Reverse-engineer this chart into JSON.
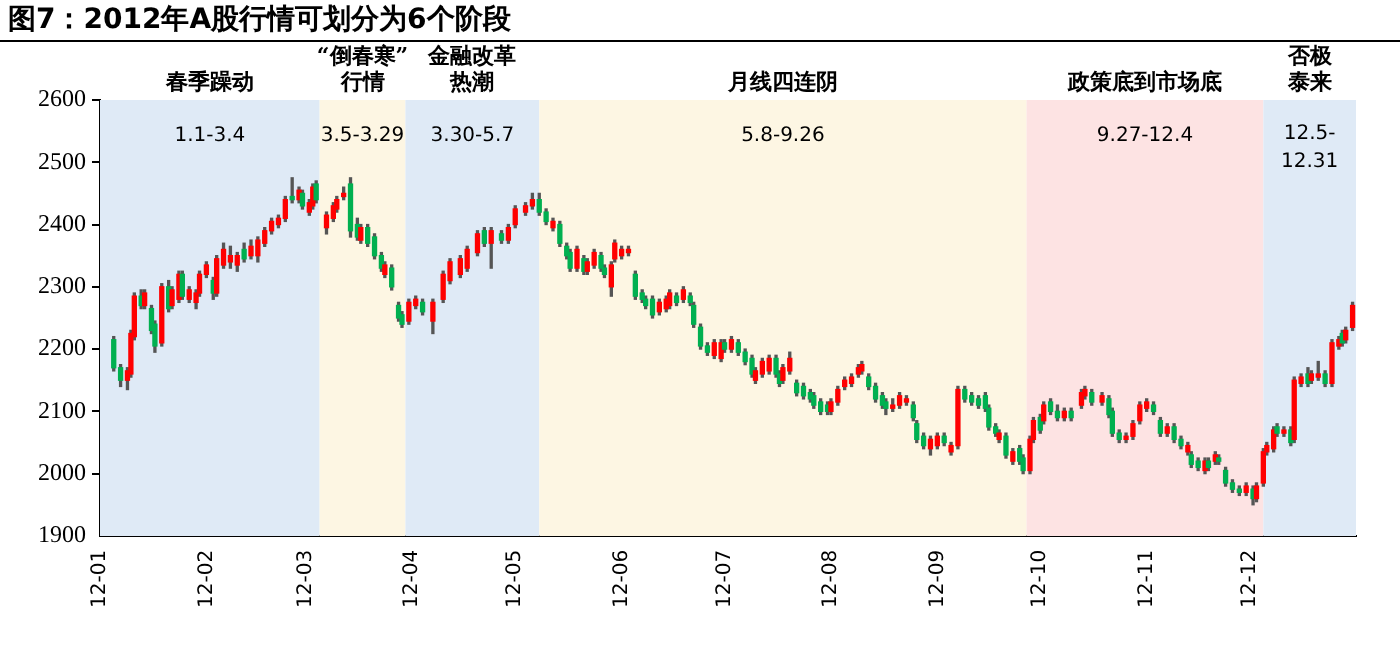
{
  "chart_data": {
    "type": "candlestick",
    "title": "图7：2012年A股行情可划分为6个阶段",
    "xlim": [
      "2012-01-01",
      "2013-01-01"
    ],
    "xticks": [
      {
        "value": "2012-01-01",
        "label": "12-01"
      },
      {
        "value": "2012-02-01",
        "label": "12-02"
      },
      {
        "value": "2012-03-01",
        "label": "12-03"
      },
      {
        "value": "2012-04-01",
        "label": "12-04"
      },
      {
        "value": "2012-05-01",
        "label": "12-05"
      },
      {
        "value": "2012-06-01",
        "label": "12-06"
      },
      {
        "value": "2012-07-01",
        "label": "12-07"
      },
      {
        "value": "2012-08-01",
        "label": "12-08"
      },
      {
        "value": "2012-09-01",
        "label": "12-09"
      },
      {
        "value": "2012-10-01",
        "label": "12-10"
      },
      {
        "value": "2012-11-01",
        "label": "12-11"
      },
      {
        "value": "2012-12-01",
        "label": "12-12"
      }
    ],
    "ylim": [
      1900,
      2600
    ],
    "yticks": [
      1900,
      2000,
      2100,
      2200,
      2300,
      2400,
      2500,
      2600
    ],
    "grid": false,
    "legend": false,
    "x": [
      "2012-01-05",
      "2012-01-07",
      "2012-01-09",
      "2012-01-10",
      "2012-01-11",
      "2012-01-13",
      "2012-01-14",
      "2012-01-16",
      "2012-01-17",
      "2012-01-19",
      "2012-01-21",
      "2012-01-22",
      "2012-01-24",
      "2012-01-25",
      "2012-01-27",
      "2012-01-29",
      "2012-01-30",
      "2012-02-01",
      "2012-02-03",
      "2012-02-04",
      "2012-02-06",
      "2012-02-08",
      "2012-02-10",
      "2012-02-12",
      "2012-02-14",
      "2012-02-16",
      "2012-02-18",
      "2012-02-20",
      "2012-02-22",
      "2012-02-24",
      "2012-02-26",
      "2012-02-28",
      "2012-02-29",
      "2012-03-02",
      "2012-03-03",
      "2012-03-04",
      "2012-03-07",
      "2012-03-09",
      "2012-03-10",
      "2012-03-12",
      "2012-03-14",
      "2012-03-16",
      "2012-03-17",
      "2012-03-19",
      "2012-03-21",
      "2012-03-23",
      "2012-03-24",
      "2012-03-26",
      "2012-03-28",
      "2012-03-29",
      "2012-03-31",
      "2012-04-02",
      "2012-04-04",
      "2012-04-07",
      "2012-04-10",
      "2012-04-12",
      "2012-04-15",
      "2012-04-17",
      "2012-04-20",
      "2012-04-22",
      "2012-04-24",
      "2012-04-27",
      "2012-04-29",
      "2012-05-01",
      "2012-05-04",
      "2012-05-06",
      "2012-05-08",
      "2012-05-10",
      "2012-05-12",
      "2012-05-14",
      "2012-05-16",
      "2012-05-17",
      "2012-05-19",
      "2012-05-21",
      "2012-05-22",
      "2012-05-24",
      "2012-05-26",
      "2012-05-27",
      "2012-05-29",
      "2012-05-30",
      "2012-06-01",
      "2012-06-03",
      "2012-06-05",
      "2012-06-07",
      "2012-06-08",
      "2012-06-10",
      "2012-06-12",
      "2012-06-14",
      "2012-06-15",
      "2012-06-17",
      "2012-06-19",
      "2012-06-21",
      "2012-06-22",
      "2012-06-24",
      "2012-06-26",
      "2012-06-28",
      "2012-06-30",
      "2012-07-01",
      "2012-07-03",
      "2012-07-05",
      "2012-07-07",
      "2012-07-09",
      "2012-07-10",
      "2012-07-12",
      "2012-07-14",
      "2012-07-16",
      "2012-07-17",
      "2012-07-18",
      "2012-07-20",
      "2012-07-22",
      "2012-07-24",
      "2012-07-26",
      "2012-07-27",
      "2012-07-29",
      "2012-07-31",
      "2012-08-01",
      "2012-08-03",
      "2012-08-05",
      "2012-08-07",
      "2012-08-09",
      "2012-08-10",
      "2012-08-12",
      "2012-08-14",
      "2012-08-16",
      "2012-08-17",
      "2012-08-19",
      "2012-08-21",
      "2012-08-23",
      "2012-08-25",
      "2012-08-26",
      "2012-08-28",
      "2012-08-30",
      "2012-09-01",
      "2012-09-03",
      "2012-09-05",
      "2012-09-07",
      "2012-09-09",
      "2012-09-11",
      "2012-09-13",
      "2012-09-15",
      "2012-09-16",
      "2012-09-18",
      "2012-09-19",
      "2012-09-21",
      "2012-09-23",
      "2012-09-25",
      "2012-09-26",
      "2012-09-28",
      "2012-09-29",
      "2012-10-01",
      "2012-10-02",
      "2012-10-04",
      "2012-10-06",
      "2012-10-08",
      "2012-10-10",
      "2012-10-13",
      "2012-10-14",
      "2012-10-16",
      "2012-10-19",
      "2012-10-21",
      "2012-10-22",
      "2012-10-24",
      "2012-10-26",
      "2012-10-28",
      "2012-10-30",
      "2012-11-01",
      "2012-11-03",
      "2012-11-05",
      "2012-11-07",
      "2012-11-09",
      "2012-11-11",
      "2012-11-13",
      "2012-11-14",
      "2012-11-16",
      "2012-11-18",
      "2012-11-19",
      "2012-11-21",
      "2012-11-22",
      "2012-11-24",
      "2012-11-26",
      "2012-11-28",
      "2012-11-30",
      "2012-12-02",
      "2012-12-03",
      "2012-12-05",
      "2012-12-06",
      "2012-12-08",
      "2012-12-09",
      "2012-12-11",
      "2012-12-13",
      "2012-12-14",
      "2012-12-16",
      "2012-12-18",
      "2012-12-19",
      "2012-12-21",
      "2012-12-23",
      "2012-12-25",
      "2012-12-27",
      "2012-12-28",
      "2012-12-29",
      "2012-12-31"
    ],
    "ohlc": [
      [
        2215,
        2220,
        2165,
        2170
      ],
      [
        2170,
        2175,
        2140,
        2150
      ],
      [
        2150,
        2170,
        2135,
        2165
      ],
      [
        2160,
        2230,
        2155,
        2225
      ],
      [
        2220,
        2290,
        2215,
        2285
      ],
      [
        2285,
        2295,
        2265,
        2270
      ],
      [
        2270,
        2295,
        2265,
        2290
      ],
      [
        2265,
        2270,
        2225,
        2230
      ],
      [
        2240,
        2245,
        2195,
        2205
      ],
      [
        2210,
        2305,
        2205,
        2300
      ],
      [
        2300,
        2310,
        2260,
        2265
      ],
      [
        2270,
        2300,
        2265,
        2295
      ],
      [
        2280,
        2325,
        2275,
        2320
      ],
      [
        2320,
        2325,
        2280,
        2285
      ],
      [
        2280,
        2300,
        2275,
        2295
      ],
      [
        2275,
        2295,
        2265,
        2290
      ],
      [
        2290,
        2325,
        2285,
        2320
      ],
      [
        2320,
        2340,
        2315,
        2335
      ],
      [
        2310,
        2315,
        2280,
        2290
      ],
      [
        2290,
        2350,
        2285,
        2345
      ],
      [
        2335,
        2370,
        2330,
        2360
      ],
      [
        2340,
        2365,
        2330,
        2350
      ],
      [
        2335,
        2355,
        2325,
        2350
      ],
      [
        2360,
        2370,
        2340,
        2345
      ],
      [
        2350,
        2375,
        2345,
        2365
      ],
      [
        2350,
        2380,
        2340,
        2375
      ],
      [
        2370,
        2395,
        2365,
        2390
      ],
      [
        2390,
        2410,
        2385,
        2405
      ],
      [
        2400,
        2415,
        2395,
        2410
      ],
      [
        2410,
        2445,
        2405,
        2440
      ],
      [
        2445,
        2475,
        2435,
        2440
      ],
      [
        2440,
        2460,
        2435,
        2455
      ],
      [
        2450,
        2455,
        2425,
        2430
      ],
      [
        2420,
        2440,
        2415,
        2435
      ],
      [
        2430,
        2465,
        2425,
        2460
      ],
      [
        2465,
        2470,
        2435,
        2440
      ],
      [
        2395,
        2420,
        2385,
        2415
      ],
      [
        2410,
        2435,
        2405,
        2430
      ],
      [
        2425,
        2445,
        2420,
        2440
      ],
      [
        2445,
        2460,
        2440,
        2450
      ],
      [
        2465,
        2475,
        2380,
        2390
      ],
      [
        2400,
        2410,
        2375,
        2380
      ],
      [
        2375,
        2400,
        2370,
        2395
      ],
      [
        2395,
        2400,
        2365,
        2370
      ],
      [
        2380,
        2385,
        2345,
        2350
      ],
      [
        2350,
        2355,
        2325,
        2330
      ],
      [
        2320,
        2340,
        2315,
        2335
      ],
      [
        2330,
        2335,
        2295,
        2300
      ],
      [
        2270,
        2275,
        2245,
        2250
      ],
      [
        2255,
        2260,
        2235,
        2240
      ],
      [
        2245,
        2280,
        2240,
        2275
      ],
      [
        2270,
        2285,
        2265,
        2280
      ],
      [
        2275,
        2280,
        2255,
        2260
      ],
      [
        2245,
        2280,
        2225,
        2275
      ],
      [
        2280,
        2325,
        2275,
        2320
      ],
      [
        2310,
        2345,
        2305,
        2340
      ],
      [
        2320,
        2350,
        2315,
        2345
      ],
      [
        2330,
        2365,
        2325,
        2360
      ],
      [
        2355,
        2390,
        2350,
        2385
      ],
      [
        2390,
        2395,
        2365,
        2370
      ],
      [
        2370,
        2395,
        2330,
        2390
      ],
      [
        2385,
        2390,
        2370,
        2375
      ],
      [
        2375,
        2400,
        2370,
        2395
      ],
      [
        2400,
        2430,
        2395,
        2425
      ],
      [
        2420,
        2435,
        2415,
        2430
      ],
      [
        2430,
        2450,
        2425,
        2440
      ],
      [
        2440,
        2450,
        2415,
        2420
      ],
      [
        2420,
        2425,
        2400,
        2405
      ],
      [
        2395,
        2410,
        2390,
        2405
      ],
      [
        2400,
        2405,
        2365,
        2370
      ],
      [
        2365,
        2370,
        2345,
        2350
      ],
      [
        2355,
        2360,
        2325,
        2330
      ],
      [
        2330,
        2365,
        2325,
        2360
      ],
      [
        2345,
        2350,
        2320,
        2325
      ],
      [
        2325,
        2345,
        2320,
        2340
      ],
      [
        2335,
        2360,
        2330,
        2355
      ],
      [
        2350,
        2355,
        2325,
        2330
      ],
      [
        2330,
        2335,
        2315,
        2320
      ],
      [
        2300,
        2340,
        2285,
        2335
      ],
      [
        2345,
        2375,
        2340,
        2370
      ],
      [
        2350,
        2365,
        2345,
        2360
      ],
      [
        2355,
        2365,
        2350,
        2360
      ],
      [
        2320,
        2325,
        2280,
        2285
      ],
      [
        2290,
        2295,
        2275,
        2280
      ],
      [
        2280,
        2285,
        2265,
        2270
      ],
      [
        2280,
        2285,
        2250,
        2255
      ],
      [
        2260,
        2280,
        2255,
        2275
      ],
      [
        2265,
        2285,
        2260,
        2280
      ],
      [
        2270,
        2295,
        2265,
        2290
      ],
      [
        2285,
        2290,
        2270,
        2275
      ],
      [
        2280,
        2300,
        2275,
        2295
      ],
      [
        2285,
        2290,
        2270,
        2275
      ],
      [
        2270,
        2275,
        2235,
        2240
      ],
      [
        2235,
        2240,
        2200,
        2205
      ],
      [
        2205,
        2210,
        2190,
        2195
      ],
      [
        2190,
        2215,
        2185,
        2210
      ],
      [
        2185,
        2215,
        2180,
        2210
      ],
      [
        2210,
        2215,
        2195,
        2200
      ],
      [
        2200,
        2220,
        2195,
        2215
      ],
      [
        2210,
        2215,
        2190,
        2195
      ],
      [
        2195,
        2200,
        2175,
        2180
      ],
      [
        2185,
        2190,
        2155,
        2160
      ],
      [
        2150,
        2170,
        2145,
        2165
      ],
      [
        2160,
        2185,
        2155,
        2180
      ],
      [
        2165,
        2190,
        2160,
        2185
      ],
      [
        2185,
        2190,
        2155,
        2160
      ],
      [
        2160,
        2165,
        2140,
        2145
      ],
      [
        2150,
        2175,
        2145,
        2170
      ],
      [
        2165,
        2195,
        2160,
        2185
      ],
      [
        2145,
        2150,
        2125,
        2130
      ],
      [
        2140,
        2145,
        2120,
        2125
      ],
      [
        2130,
        2135,
        2115,
        2120
      ],
      [
        2125,
        2130,
        2105,
        2110
      ],
      [
        2115,
        2120,
        2095,
        2100
      ],
      [
        2110,
        2115,
        2095,
        2100
      ],
      [
        2100,
        2120,
        2095,
        2115
      ],
      [
        2115,
        2140,
        2110,
        2135
      ],
      [
        2140,
        2155,
        2135,
        2150
      ],
      [
        2145,
        2160,
        2140,
        2155
      ],
      [
        2160,
        2175,
        2155,
        2170
      ],
      [
        2165,
        2180,
        2160,
        2175
      ],
      [
        2155,
        2160,
        2135,
        2140
      ],
      [
        2140,
        2145,
        2115,
        2120
      ],
      [
        2125,
        2130,
        2105,
        2110
      ],
      [
        2115,
        2120,
        2095,
        2105
      ],
      [
        2105,
        2120,
        2100,
        2110
      ],
      [
        2110,
        2130,
        2105,
        2125
      ],
      [
        2115,
        2125,
        2110,
        2120
      ],
      [
        2110,
        2115,
        2085,
        2090
      ],
      [
        2080,
        2085,
        2050,
        2055
      ],
      [
        2060,
        2065,
        2040,
        2045
      ],
      [
        2040,
        2060,
        2030,
        2055
      ],
      [
        2045,
        2065,
        2040,
        2060
      ],
      [
        2060,
        2065,
        2045,
        2050
      ],
      [
        2035,
        2050,
        2030,
        2045
      ],
      [
        2045,
        2140,
        2040,
        2135
      ],
      [
        2135,
        2140,
        2115,
        2120
      ],
      [
        2125,
        2130,
        2110,
        2115
      ],
      [
        2120,
        2125,
        2105,
        2110
      ],
      [
        2125,
        2130,
        2100,
        2105
      ],
      [
        2105,
        2110,
        2070,
        2075
      ],
      [
        2075,
        2080,
        2060,
        2065
      ],
      [
        2055,
        2070,
        2050,
        2065
      ],
      [
        2060,
        2065,
        2025,
        2030
      ],
      [
        2020,
        2040,
        2015,
        2035
      ],
      [
        2040,
        2045,
        2015,
        2020
      ],
      [
        2025,
        2030,
        2000,
        2005
      ],
      [
        2005,
        2060,
        2000,
        2055
      ],
      [
        2055,
        2090,
        2050,
        2085
      ],
      [
        2090,
        2095,
        2065,
        2070
      ],
      [
        2085,
        2115,
        2080,
        2110
      ],
      [
        2115,
        2120,
        2095,
        2100
      ],
      [
        2100,
        2110,
        2085,
        2090
      ],
      [
        2090,
        2105,
        2085,
        2100
      ],
      [
        2100,
        2105,
        2085,
        2090
      ],
      [
        2110,
        2135,
        2105,
        2130
      ],
      [
        2125,
        2140,
        2120,
        2135
      ],
      [
        2130,
        2135,
        2110,
        2115
      ],
      [
        2115,
        2130,
        2110,
        2125
      ],
      [
        2120,
        2125,
        2090,
        2095
      ],
      [
        2100,
        2105,
        2060,
        2065
      ],
      [
        2065,
        2070,
        2050,
        2055
      ],
      [
        2055,
        2065,
        2050,
        2060
      ],
      [
        2060,
        2085,
        2055,
        2080
      ],
      [
        2085,
        2115,
        2080,
        2110
      ],
      [
        2105,
        2120,
        2100,
        2115
      ],
      [
        2110,
        2115,
        2095,
        2100
      ],
      [
        2085,
        2090,
        2060,
        2065
      ],
      [
        2065,
        2080,
        2060,
        2075
      ],
      [
        2075,
        2080,
        2050,
        2055
      ],
      [
        2055,
        2060,
        2040,
        2045
      ],
      [
        2035,
        2050,
        2030,
        2045
      ],
      [
        2030,
        2035,
        2010,
        2015
      ],
      [
        2020,
        2025,
        2005,
        2010
      ],
      [
        2005,
        2025,
        2000,
        2020
      ],
      [
        2020,
        2025,
        2005,
        2010
      ],
      [
        2020,
        2035,
        2015,
        2030
      ],
      [
        2025,
        2030,
        2015,
        2020
      ],
      [
        2005,
        2010,
        1980,
        1985
      ],
      [
        1985,
        1990,
        1970,
        1975
      ],
      [
        1975,
        1980,
        1965,
        1970
      ],
      [
        1970,
        1985,
        1965,
        1980
      ],
      [
        1975,
        1980,
        1950,
        1960
      ],
      [
        1960,
        1985,
        1955,
        1980
      ],
      [
        1985,
        2040,
        1980,
        2035
      ],
      [
        2035,
        2050,
        2030,
        2045
      ],
      [
        2040,
        2075,
        2035,
        2070
      ],
      [
        2075,
        2080,
        2060,
        2065
      ],
      [
        2065,
        2075,
        2060,
        2070
      ],
      [
        2070,
        2075,
        2045,
        2050
      ],
      [
        2055,
        2155,
        2050,
        2150
      ],
      [
        2145,
        2160,
        2140,
        2155
      ],
      [
        2160,
        2170,
        2140,
        2145
      ],
      [
        2150,
        2165,
        2145,
        2160
      ],
      [
        2155,
        2180,
        2150,
        2160
      ],
      [
        2160,
        2165,
        2140,
        2145
      ],
      [
        2145,
        2215,
        2140,
        2210
      ],
      [
        2205,
        2220,
        2200,
        2215
      ],
      [
        2225,
        2230,
        2205,
        2210
      ],
      [
        2215,
        2235,
        2210,
        2230
      ],
      [
        2235,
        2275,
        2230,
        2270
      ]
    ],
    "bands": [
      {
        "axis": "x",
        "from": "2012-01-01",
        "to": "2012-03-05",
        "label": "春季躁动",
        "color": "#dfeaf6"
      },
      {
        "axis": "x",
        "from": "2012-03-05",
        "to": "2012-03-30",
        "label": "“倒春寒”行情",
        "color": "#fdf6e3"
      },
      {
        "axis": "x",
        "from": "2012-03-30",
        "to": "2012-05-08",
        "label": "金融改革热潮",
        "color": "#dfeaf6"
      },
      {
        "axis": "x",
        "from": "2012-05-08",
        "to": "2012-09-27",
        "label": "月线四连阴",
        "color": "#fdf6e3"
      },
      {
        "axis": "x",
        "from": "2012-09-27",
        "to": "2012-12-05",
        "label": "政策底到市场底",
        "color": "#fde3e3"
      },
      {
        "axis": "x",
        "from": "2012-12-05",
        "to": "2013-01-01",
        "label": "否极泰来",
        "color": "#dfeaf6"
      }
    ],
    "annotations": [
      "1.1-3.4",
      "3.5-3.29",
      "3.30-5.7",
      "5.8-9.26",
      "9.27-12.4",
      "12.5-\n12.31"
    ]
  }
}
